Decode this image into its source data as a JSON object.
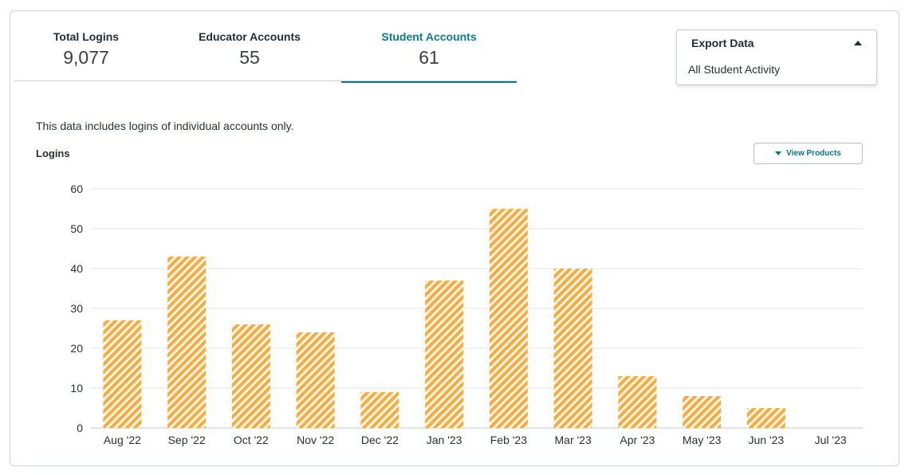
{
  "tabs": [
    {
      "label": "Total Logins",
      "value": "9,077",
      "active": false
    },
    {
      "label": "Educator Accounts",
      "value": "55",
      "active": false
    },
    {
      "label": "Student Accounts",
      "value": "61",
      "active": true
    }
  ],
  "export": {
    "title": "Export Data",
    "items": [
      "All Student Activity"
    ]
  },
  "note": "This data includes logins of individual accounts only.",
  "view_products_label": "View Products",
  "colors": {
    "accent": "#0e7a92",
    "bar_stripe": "#fbab3a",
    "bar_gap": "#ffffff",
    "grid": "#e3e5e8"
  },
  "chart_data": {
    "type": "bar",
    "ylabel": "Logins",
    "xlabel": "",
    "categories": [
      "Aug '22",
      "Sep '22",
      "Oct '22",
      "Nov '22",
      "Dec '22",
      "Jan '23",
      "Feb '23",
      "Mar '23",
      "Apr '23",
      "May '23",
      "Jun '23",
      "Jul '23"
    ],
    "values": [
      27,
      43,
      26,
      24,
      9,
      37,
      55,
      40,
      13,
      8,
      5,
      0
    ],
    "ylim": [
      0,
      60
    ],
    "yticks": [
      0,
      10,
      20,
      30,
      40,
      50,
      60
    ],
    "grid": true,
    "bar_style": "diagonal-stripes"
  }
}
